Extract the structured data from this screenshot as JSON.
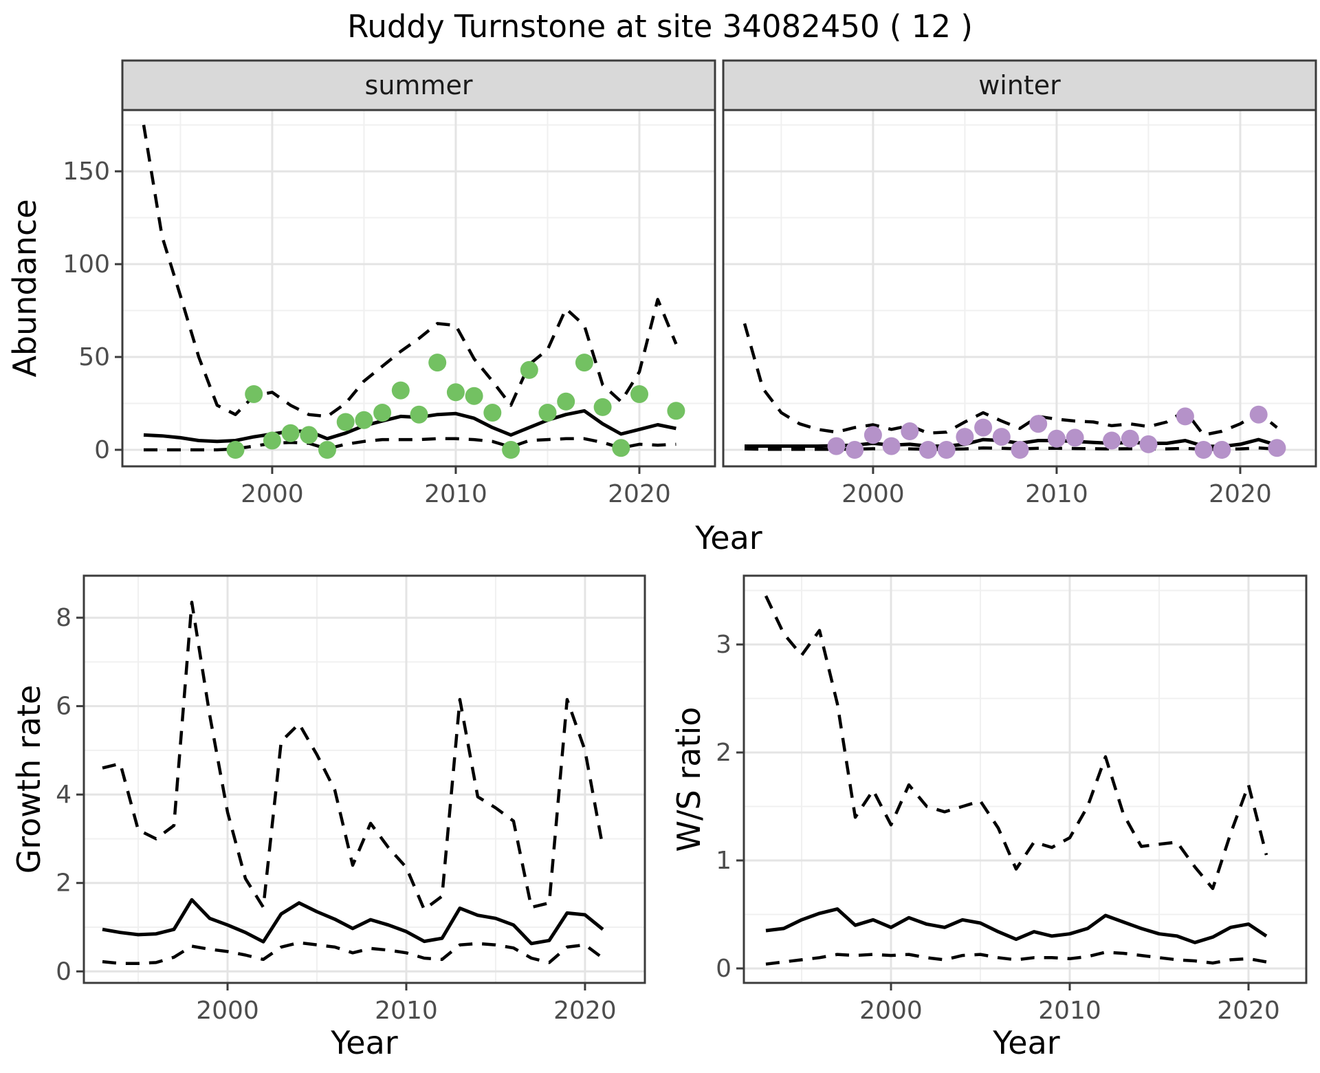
{
  "title": "Ruddy Turnstone at site 34082450 ( 12 )",
  "axes": {
    "abundance_label": "Abundance",
    "growth_label": "Growth rate",
    "ws_label": "W/S ratio",
    "year_label": "Year"
  },
  "colors": {
    "line": "#000000",
    "summer_points": "#73c162",
    "winter_points": "#b592c9",
    "strip_bg": "#d9d9d9",
    "panel_border": "#3c3c3c",
    "grid_major": "#e4e4e4",
    "grid_minor": "#f0f0f0",
    "tick_text": "#4d4d4d"
  },
  "chart_data": [
    {
      "type": "line",
      "id": "abundance-summer",
      "facet_label": "summer",
      "xlabel": "Year",
      "ylabel": "Abundance",
      "xlim": [
        1991.84,
        2024.12
      ],
      "ylim": [
        -8.9,
        183.0
      ],
      "x_ticks": [
        2000,
        2010,
        2020
      ],
      "y_ticks": [
        0,
        50,
        100,
        150
      ],
      "x_minor": [
        1995,
        2005,
        2015
      ],
      "y_minor": [
        25,
        75,
        125,
        175
      ],
      "show_y_axis": true,
      "series": [
        {
          "name": "upper-95ci",
          "type": "line",
          "style": "dashed",
          "x": [
            1993,
            1994,
            1995,
            1996,
            1997,
            1998,
            1999,
            2000,
            2001,
            2002,
            2003,
            2004,
            2005,
            2006,
            2007,
            2008,
            2009,
            2010,
            2011,
            2012,
            2013,
            2014,
            2015,
            2016,
            2017,
            2018,
            2019,
            2020,
            2021,
            2022
          ],
          "y": [
            175,
            115,
            83,
            50,
            24,
            19,
            29,
            31,
            24,
            19,
            18,
            25,
            37,
            45,
            53,
            60,
            68,
            67,
            49,
            37,
            24,
            46,
            54,
            76,
            67,
            35,
            26,
            42,
            81,
            57
          ]
        },
        {
          "name": "lower-95ci",
          "type": "line",
          "style": "dashed",
          "x": [
            1993,
            1994,
            1995,
            1996,
            1997,
            1998,
            1999,
            2000,
            2001,
            2002,
            2003,
            2004,
            2005,
            2006,
            2007,
            2008,
            2009,
            2010,
            2011,
            2012,
            2013,
            2014,
            2015,
            2016,
            2017,
            2018,
            2019,
            2020,
            2021,
            2022
          ],
          "y": [
            0,
            0,
            0,
            0,
            0,
            0.5,
            2,
            3.5,
            4,
            3.5,
            0.5,
            3,
            4.5,
            5.5,
            5.5,
            5.5,
            6,
            6,
            5.5,
            4.5,
            1.5,
            5,
            5.5,
            6,
            6,
            4,
            1,
            3,
            2.5,
            3
          ]
        },
        {
          "name": "mean-abundance",
          "type": "line",
          "style": "solid",
          "x": [
            1993,
            1994,
            1995,
            1996,
            1997,
            1998,
            1999,
            2000,
            2001,
            2002,
            2003,
            2004,
            2005,
            2006,
            2007,
            2008,
            2009,
            2010,
            2011,
            2012,
            2013,
            2014,
            2015,
            2016,
            2017,
            2018,
            2019,
            2020,
            2021,
            2022
          ],
          "y": [
            8,
            7.5,
            6.5,
            5,
            4.5,
            5,
            7,
            8.5,
            10,
            10,
            6,
            9,
            13,
            15.5,
            18,
            17.5,
            19,
            19.5,
            17,
            12,
            8,
            12,
            16,
            19,
            21,
            14,
            8.5,
            11,
            13.5,
            11.5
          ]
        },
        {
          "name": "observed-counts",
          "type": "scatter",
          "color_key": "summer_points",
          "x": [
            1998,
            1999,
            2000,
            2001,
            2002,
            2003,
            2004,
            2005,
            2006,
            2007,
            2008,
            2009,
            2010,
            2011,
            2012,
            2013,
            2014,
            2015,
            2016,
            2017,
            2018,
            2019,
            2020,
            2022
          ],
          "y": [
            0,
            30,
            5,
            9,
            8,
            0,
            15,
            16,
            20,
            32,
            19,
            47,
            31,
            29,
            20,
            0,
            43,
            20,
            26,
            47,
            23,
            1,
            30,
            21
          ]
        }
      ]
    },
    {
      "type": "line",
      "id": "abundance-winter",
      "facet_label": "winter",
      "xlabel": "Year",
      "ylabel": "Abundance",
      "xlim": [
        1991.84,
        2024.12
      ],
      "ylim": [
        -8.9,
        183.0
      ],
      "x_ticks": [
        2000,
        2010,
        2020
      ],
      "y_ticks": [
        0,
        50,
        100,
        150
      ],
      "x_minor": [
        1995,
        2005,
        2015
      ],
      "y_minor": [
        25,
        75,
        125,
        175
      ],
      "show_y_axis": false,
      "series": [
        {
          "name": "upper-95ci",
          "type": "line",
          "style": "dashed",
          "x": [
            1993,
            1994,
            1995,
            1996,
            1997,
            1998,
            1999,
            2000,
            2001,
            2002,
            2003,
            2004,
            2005,
            2006,
            2007,
            2008,
            2009,
            2010,
            2011,
            2012,
            2013,
            2014,
            2015,
            2016,
            2017,
            2018,
            2019,
            2020,
            2021,
            2022
          ],
          "y": [
            68,
            33,
            20,
            14,
            11,
            9.5,
            12,
            13.5,
            11,
            13,
            9,
            9.5,
            15,
            20,
            15.5,
            11.5,
            18,
            16.5,
            15.5,
            15,
            13,
            14,
            12.5,
            15,
            21,
            8,
            10,
            14,
            20,
            12
          ]
        },
        {
          "name": "lower-95ci",
          "type": "line",
          "style": "dashed",
          "x": [
            1993,
            1994,
            1995,
            1996,
            1997,
            1998,
            1999,
            2000,
            2001,
            2002,
            2003,
            2004,
            2005,
            2006,
            2007,
            2008,
            2009,
            2010,
            2011,
            2012,
            2013,
            2014,
            2015,
            2016,
            2017,
            2018,
            2019,
            2020,
            2021,
            2022
          ],
          "y": [
            0.5,
            0.3,
            0.3,
            0.3,
            0.3,
            0.3,
            0.4,
            0.6,
            0.4,
            0.5,
            0.3,
            0.3,
            0.5,
            1,
            0.8,
            0.5,
            0.8,
            0.8,
            0.7,
            0.6,
            0.5,
            0.6,
            0.5,
            0.5,
            0.8,
            0.3,
            0.3,
            0.5,
            1,
            0.4
          ]
        },
        {
          "name": "mean-abundance",
          "type": "line",
          "style": "solid",
          "x": [
            1993,
            1994,
            1995,
            1996,
            1997,
            1998,
            1999,
            2000,
            2001,
            2002,
            2003,
            2004,
            2005,
            2006,
            2007,
            2008,
            2009,
            2010,
            2011,
            2012,
            2013,
            2014,
            2015,
            2016,
            2017,
            2018,
            2019,
            2020,
            2021,
            2022
          ],
          "y": [
            2,
            2,
            2,
            2,
            2,
            2.2,
            2.5,
            3.5,
            2.5,
            3,
            2,
            2,
            3,
            5.5,
            5,
            3.5,
            5,
            5,
            4.5,
            4,
            3.5,
            4,
            3.5,
            3.5,
            5,
            2,
            1.8,
            3,
            5.5,
            2.5
          ]
        },
        {
          "name": "observed-counts",
          "type": "scatter",
          "color_key": "winter_points",
          "x": [
            1998,
            1999,
            2000,
            2001,
            2002,
            2003,
            2004,
            2005,
            2006,
            2007,
            2008,
            2009,
            2010,
            2011,
            2013,
            2014,
            2015,
            2017,
            2018,
            2019,
            2021,
            2022
          ],
          "y": [
            2,
            0,
            8,
            2,
            10,
            0,
            0,
            7,
            12,
            7,
            0,
            14,
            6,
            6.5,
            5,
            6,
            3,
            18,
            0,
            0,
            19,
            1
          ]
        }
      ]
    },
    {
      "type": "line",
      "id": "growth-rate",
      "facet_label": "",
      "xlabel": "Year",
      "ylabel": "Growth rate",
      "xlim": [
        1991.96,
        2023.35
      ],
      "ylim": [
        -0.26,
        8.95
      ],
      "x_ticks": [
        2000,
        2010,
        2020
      ],
      "y_ticks": [
        0,
        2,
        4,
        6,
        8
      ],
      "x_minor": [
        1995,
        2005,
        2015
      ],
      "y_minor": [
        1,
        3,
        5,
        7
      ],
      "show_y_axis": true,
      "series": [
        {
          "name": "upper-95ci",
          "type": "line",
          "style": "dashed",
          "x": [
            1993,
            1994,
            1995,
            1996,
            1997,
            1998,
            1999,
            2000,
            2001,
            2002,
            2003,
            2004,
            2005,
            2006,
            2007,
            2008,
            2009,
            2010,
            2011,
            2012,
            2013,
            2014,
            2015,
            2016,
            2017,
            2018,
            2019,
            2020,
            2021
          ],
          "y": [
            4.6,
            4.7,
            3.2,
            3.0,
            3.3,
            8.35,
            5.8,
            3.6,
            2.1,
            1.45,
            5.2,
            5.6,
            4.9,
            4.1,
            2.4,
            3.35,
            2.8,
            2.35,
            1.4,
            1.7,
            6.15,
            3.95,
            3.7,
            3.4,
            1.45,
            1.55,
            6.15,
            5.0,
            2.8
          ]
        },
        {
          "name": "lower-95ci",
          "type": "line",
          "style": "dashed",
          "x": [
            1993,
            1994,
            1995,
            1996,
            1997,
            1998,
            1999,
            2000,
            2001,
            2002,
            2003,
            2004,
            2005,
            2006,
            2007,
            2008,
            2009,
            2010,
            2011,
            2012,
            2013,
            2014,
            2015,
            2016,
            2017,
            2018,
            2019,
            2020,
            2021
          ],
          "y": [
            0.22,
            0.18,
            0.18,
            0.2,
            0.32,
            0.57,
            0.5,
            0.45,
            0.37,
            0.27,
            0.55,
            0.65,
            0.6,
            0.55,
            0.42,
            0.52,
            0.48,
            0.42,
            0.3,
            0.27,
            0.6,
            0.63,
            0.6,
            0.53,
            0.3,
            0.2,
            0.55,
            0.6,
            0.3
          ]
        },
        {
          "name": "mean-growth-rate",
          "type": "line",
          "style": "solid",
          "x": [
            1993,
            1994,
            1995,
            1996,
            1997,
            1998,
            1999,
            2000,
            2001,
            2002,
            2003,
            2004,
            2005,
            2006,
            2007,
            2008,
            2009,
            2010,
            2011,
            2012,
            2013,
            2014,
            2015,
            2016,
            2017,
            2018,
            2019,
            2020,
            2021
          ],
          "y": [
            0.95,
            0.88,
            0.83,
            0.85,
            0.95,
            1.62,
            1.2,
            1.05,
            0.88,
            0.67,
            1.3,
            1.55,
            1.35,
            1.18,
            0.97,
            1.17,
            1.05,
            0.9,
            0.68,
            0.75,
            1.43,
            1.27,
            1.2,
            1.05,
            0.63,
            0.7,
            1.32,
            1.28,
            0.95
          ]
        }
      ]
    },
    {
      "type": "line",
      "id": "ws-ratio",
      "facet_label": "",
      "xlabel": "Year",
      "ylabel": "W/S ratio",
      "xlim": [
        1991.77,
        2023.23
      ],
      "ylim": [
        -0.134,
        3.637
      ],
      "x_ticks": [
        2000,
        2010,
        2020
      ],
      "y_ticks": [
        0,
        1,
        2,
        3
      ],
      "x_minor": [
        1995,
        2005,
        2015
      ],
      "y_minor": [
        0.5,
        1.5,
        2.5,
        3.5
      ],
      "show_y_axis": true,
      "series": [
        {
          "name": "upper-95ci",
          "type": "line",
          "style": "dashed",
          "x": [
            1993,
            1994,
            1995,
            1996,
            1997,
            1998,
            1999,
            2000,
            2001,
            2002,
            2003,
            2004,
            2005,
            2006,
            2007,
            2008,
            2009,
            2010,
            2011,
            2012,
            2013,
            2014,
            2015,
            2016,
            2017,
            2018,
            2019,
            2020,
            2021
          ],
          "y": [
            3.45,
            3.1,
            2.9,
            3.13,
            2.45,
            1.4,
            1.65,
            1.33,
            1.7,
            1.5,
            1.45,
            1.5,
            1.55,
            1.3,
            0.92,
            1.17,
            1.12,
            1.21,
            1.5,
            1.96,
            1.43,
            1.13,
            1.15,
            1.17,
            0.94,
            0.74,
            1.25,
            1.7,
            1.05
          ]
        },
        {
          "name": "lower-95ci",
          "type": "line",
          "style": "dashed",
          "x": [
            1993,
            1994,
            1995,
            1996,
            1997,
            1998,
            1999,
            2000,
            2001,
            2002,
            2003,
            2004,
            2005,
            2006,
            2007,
            2008,
            2009,
            2010,
            2011,
            2012,
            2013,
            2014,
            2015,
            2016,
            2017,
            2018,
            2019,
            2020,
            2021
          ],
          "y": [
            0.04,
            0.06,
            0.08,
            0.1,
            0.13,
            0.12,
            0.13,
            0.12,
            0.13,
            0.1,
            0.08,
            0.12,
            0.13,
            0.1,
            0.08,
            0.1,
            0.1,
            0.09,
            0.11,
            0.15,
            0.14,
            0.12,
            0.1,
            0.08,
            0.07,
            0.05,
            0.08,
            0.09,
            0.06
          ]
        },
        {
          "name": "mean-ws-ratio",
          "type": "line",
          "style": "solid",
          "x": [
            1993,
            1994,
            1995,
            1996,
            1997,
            1998,
            1999,
            2000,
            2001,
            2002,
            2003,
            2004,
            2005,
            2006,
            2007,
            2008,
            2009,
            2010,
            2011,
            2012,
            2013,
            2014,
            2015,
            2016,
            2017,
            2018,
            2019,
            2020,
            2021
          ],
          "y": [
            0.35,
            0.37,
            0.45,
            0.51,
            0.55,
            0.4,
            0.45,
            0.38,
            0.47,
            0.41,
            0.38,
            0.45,
            0.42,
            0.34,
            0.27,
            0.34,
            0.3,
            0.32,
            0.37,
            0.49,
            0.43,
            0.37,
            0.32,
            0.3,
            0.24,
            0.29,
            0.38,
            0.41,
            0.3
          ]
        }
      ]
    }
  ]
}
